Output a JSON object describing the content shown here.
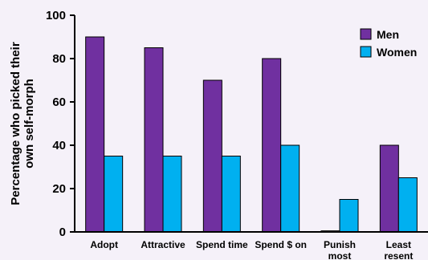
{
  "chart_data": {
    "type": "bar",
    "ylabel": "Percentage who picked their own self-morph",
    "ylabel_lines": [
      "Percentage who picked their",
      "own self-morph"
    ],
    "ylim": [
      0,
      100
    ],
    "yticks": [
      0,
      20,
      40,
      60,
      80,
      100
    ],
    "grid": false,
    "legend_position": "top-right",
    "categories": [
      [
        "Adopt"
      ],
      [
        "Attractive"
      ],
      [
        "Spend time"
      ],
      [
        "Spend $ on"
      ],
      [
        "Punish",
        "most"
      ],
      [
        "Least",
        "resent"
      ]
    ],
    "series": [
      {
        "name": "Men",
        "color": "#7030a0",
        "values": [
          90,
          85,
          70,
          80,
          0.5,
          40
        ]
      },
      {
        "name": "Women",
        "color": "#00b0f0",
        "values": [
          35,
          35,
          35,
          40,
          15,
          25
        ]
      }
    ]
  }
}
